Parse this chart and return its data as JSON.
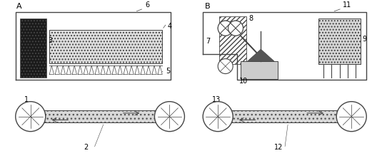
{
  "fig_width": 5.35,
  "fig_height": 2.29,
  "dpi": 100,
  "bg_color": "#ffffff",
  "line_color": "#444444"
}
